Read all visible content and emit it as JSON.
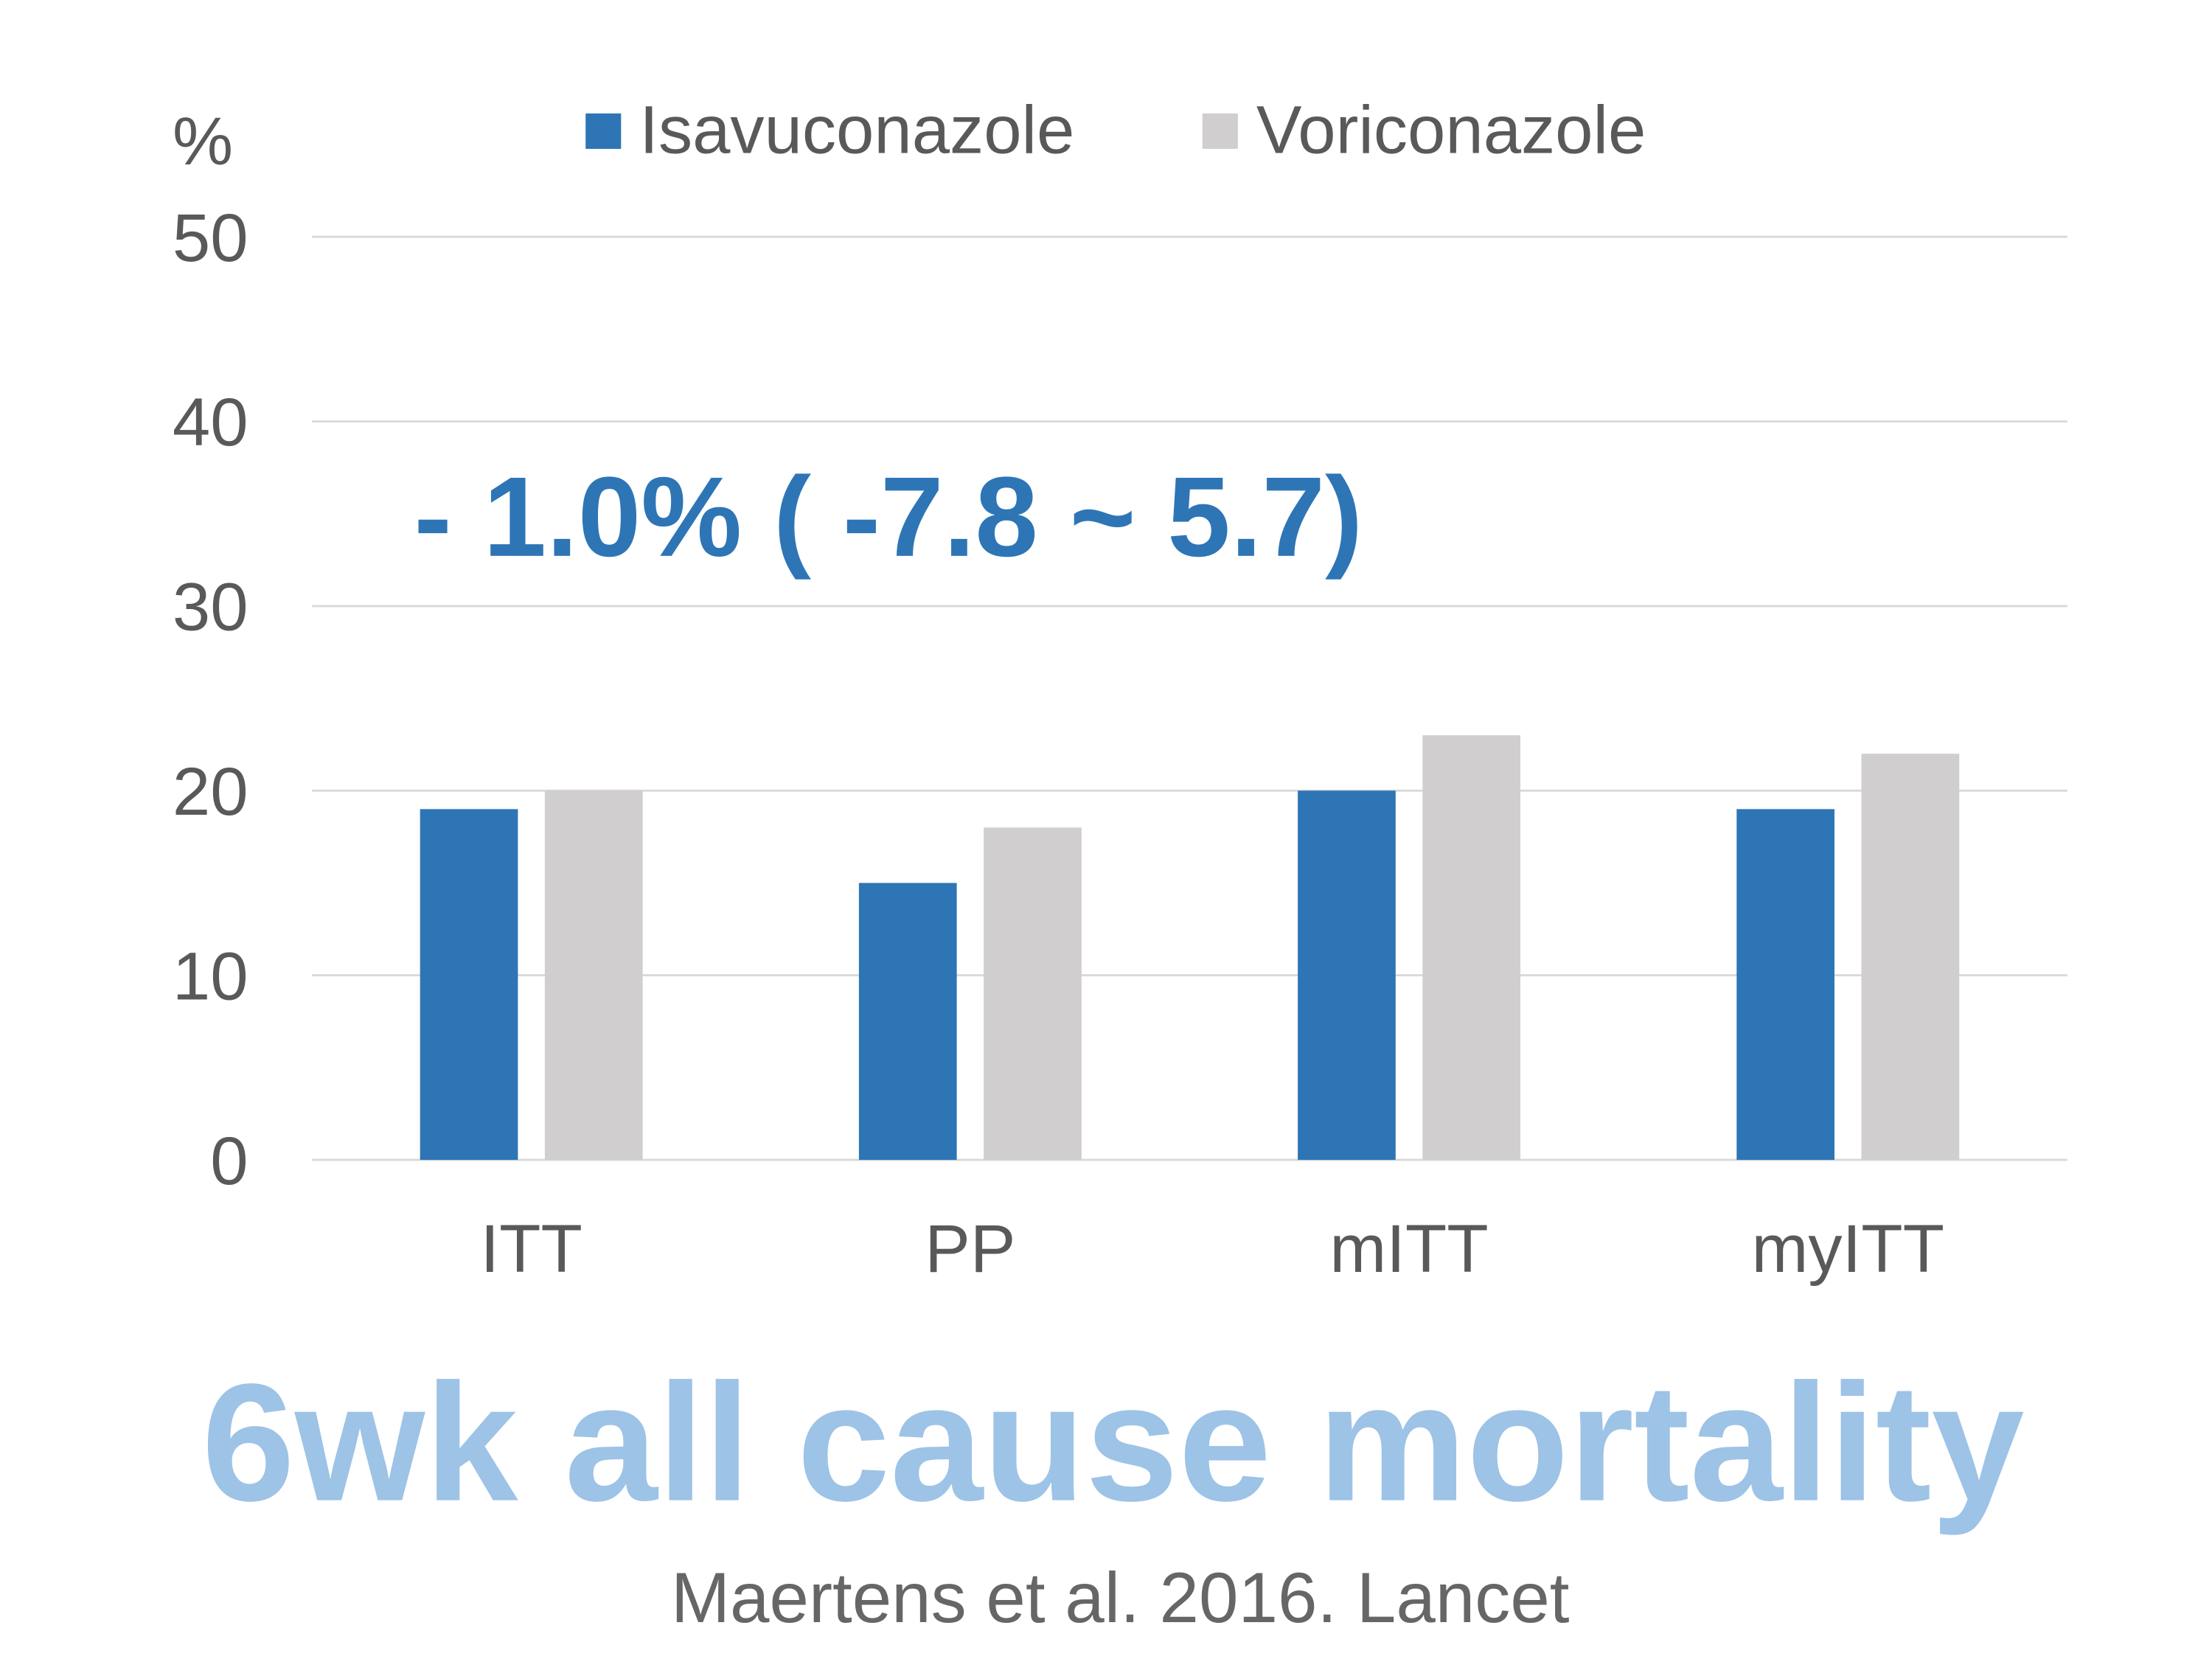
{
  "chart_data": {
    "type": "bar",
    "title": "6wk all cause mortality",
    "source": "Maertens et al. 2016. Lancet",
    "y_label": "%",
    "annotation": "- 1.0% ( -7.8 ~ 5.7)",
    "categories": [
      "ITT",
      "PP",
      "mITT",
      "myITT"
    ],
    "series": [
      {
        "name": "Isavuconazole",
        "color": "#2e75b6",
        "values": [
          19,
          15,
          20,
          19
        ]
      },
      {
        "name": "Voriconazole",
        "color": "#d0cece",
        "values": [
          20,
          18,
          23,
          22
        ]
      }
    ],
    "ylim": [
      0,
      50
    ],
    "yticks": [
      0,
      10,
      20,
      30,
      40,
      50
    ],
    "grid": true,
    "legend": "top"
  }
}
